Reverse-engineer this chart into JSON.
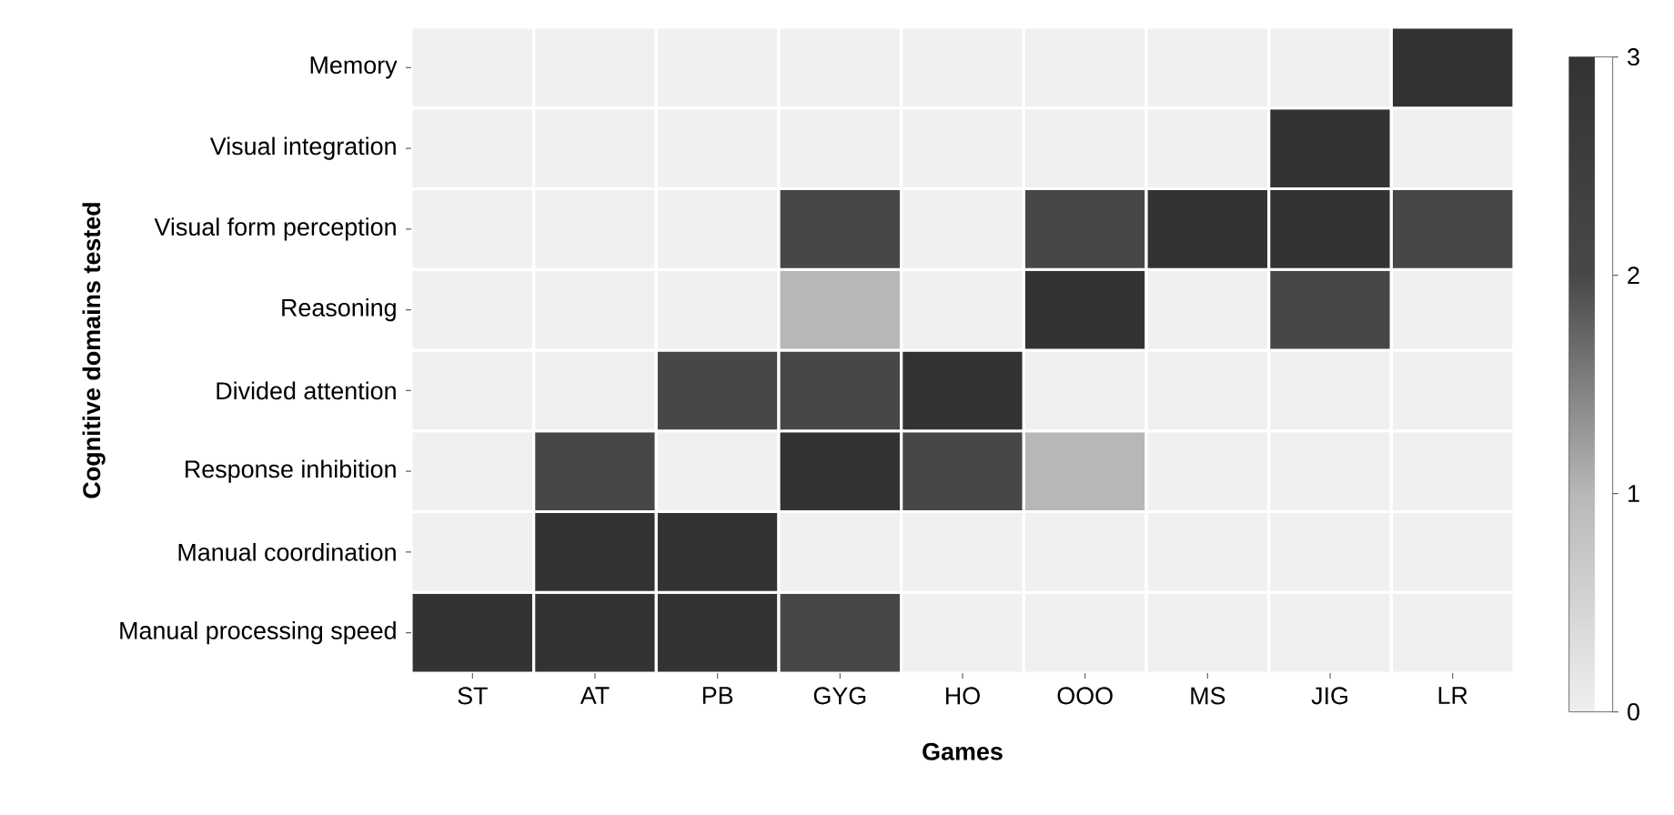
{
  "chart_data": {
    "type": "heatmap",
    "xlabel": "Games",
    "ylabel": "Cognitive domains tested",
    "categories": [
      "ST",
      "AT",
      "PB",
      "GYG",
      "HO",
      "OOO",
      "MS",
      "JIG",
      "LR"
    ],
    "y_categories": [
      "Memory",
      "Visual integration",
      "Visual form perception",
      "Reasoning",
      "Divided attention",
      "Response inhibition",
      "Manual coordination",
      "Manual processing speed"
    ],
    "cells": [
      [
        0,
        0,
        0,
        0,
        0,
        0,
        0,
        0,
        3
      ],
      [
        0,
        0,
        0,
        0,
        0,
        0,
        0,
        3,
        0
      ],
      [
        0,
        0,
        0,
        2,
        0,
        2,
        3,
        3,
        2
      ],
      [
        0,
        0,
        0,
        1,
        0,
        3,
        0,
        2,
        0
      ],
      [
        0,
        0,
        2,
        2,
        3,
        0,
        0,
        0,
        0
      ],
      [
        0,
        2,
        0,
        3,
        2,
        1,
        0,
        0,
        0
      ],
      [
        0,
        3,
        3,
        0,
        0,
        0,
        0,
        0,
        0
      ],
      [
        3,
        3,
        3,
        2,
        0,
        0,
        0,
        0,
        0
      ]
    ],
    "clim": [
      0,
      3
    ],
    "cticks": [
      0,
      1,
      2,
      3
    ]
  }
}
